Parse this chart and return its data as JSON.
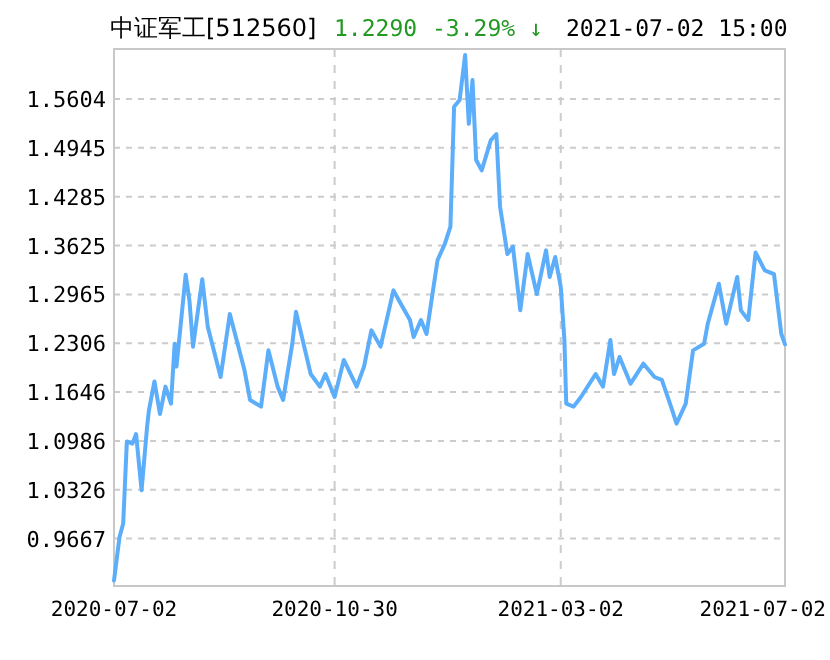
{
  "chart_data": {
    "type": "line",
    "title": "中证军工[512560]",
    "annotations": [
      "1.2290",
      "-3.29% ↓",
      "2021-07-02 15:00"
    ],
    "x": [
      "2020-07-02",
      "2020-07-05",
      "2020-07-07",
      "2020-07-09",
      "2020-07-12",
      "2020-07-14",
      "2020-07-17",
      "2020-07-20",
      "2020-07-21",
      "2020-07-24",
      "2020-07-27",
      "2020-07-30",
      "2020-08-02",
      "2020-08-04",
      "2020-08-05",
      "2020-08-10",
      "2020-08-12",
      "2020-08-14",
      "2020-08-19",
      "2020-08-22",
      "2020-08-29",
      "2020-09-03",
      "2020-09-11",
      "2020-09-14",
      "2020-09-20",
      "2020-09-24",
      "2020-09-29",
      "2020-10-02",
      "2020-10-07",
      "2020-10-09",
      "2020-10-17",
      "2020-10-22",
      "2020-10-25",
      "2020-10-30",
      "2020-11-04",
      "2020-11-11",
      "2020-11-15",
      "2020-11-19",
      "2020-11-24",
      "2020-12-01",
      "2020-12-05",
      "2020-12-10",
      "2020-12-12",
      "2020-12-16",
      "2020-12-19",
      "2020-12-22",
      "2020-12-25",
      "2020-12-29",
      "2021-01-01",
      "2021-01-03",
      "2021-01-06",
      "2021-01-09",
      "2021-01-11",
      "2021-01-13",
      "2021-01-15",
      "2021-01-18",
      "2021-01-23",
      "2021-01-26",
      "2021-01-28",
      "2021-02-01",
      "2021-02-04",
      "2021-02-08",
      "2021-02-12",
      "2021-02-17",
      "2021-02-22",
      "2021-02-24",
      "2021-02-27",
      "2021-03-02",
      "2021-03-04",
      "2021-03-05",
      "2021-03-09",
      "2021-03-13",
      "2021-03-21",
      "2021-03-25",
      "2021-03-29",
      "2021-03-31",
      "2021-04-03",
      "2021-04-09",
      "2021-04-16",
      "2021-04-22",
      "2021-04-26",
      "2021-05-01",
      "2021-05-04",
      "2021-05-09",
      "2021-05-13",
      "2021-05-19",
      "2021-05-21",
      "2021-05-27",
      "2021-05-31",
      "2021-06-06",
      "2021-06-08",
      "2021-06-12",
      "2021-06-16",
      "2021-06-21",
      "2021-06-26",
      "2021-06-30",
      "2021-07-02"
    ],
    "series": [
      {
        "color": "#5caefa",
        "values": [
          0.91,
          0.969,
          0.987,
          1.098,
          1.095,
          1.108,
          1.032,
          1.118,
          1.14,
          1.179,
          1.135,
          1.172,
          1.149,
          1.23,
          1.199,
          1.323,
          1.289,
          1.226,
          1.317,
          1.253,
          1.185,
          1.27,
          1.194,
          1.154,
          1.145,
          1.221,
          1.172,
          1.154,
          1.23,
          1.273,
          1.189,
          1.172,
          1.189,
          1.158,
          1.208,
          1.172,
          1.199,
          1.248,
          1.226,
          1.302,
          1.284,
          1.262,
          1.239,
          1.262,
          1.243,
          1.293,
          1.343,
          1.365,
          1.388,
          1.55,
          1.559,
          1.62,
          1.527,
          1.586,
          1.478,
          1.464,
          1.505,
          1.513,
          1.415,
          1.351,
          1.361,
          1.275,
          1.351,
          1.297,
          1.356,
          1.32,
          1.347,
          1.307,
          1.235,
          1.149,
          1.145,
          1.158,
          1.189,
          1.172,
          1.235,
          1.189,
          1.212,
          1.176,
          1.203,
          1.185,
          1.181,
          1.145,
          1.122,
          1.149,
          1.221,
          1.23,
          1.257,
          1.311,
          1.257,
          1.32,
          1.275,
          1.262,
          1.353,
          1.329,
          1.324,
          1.243,
          1.229
        ]
      }
    ],
    "xlim": [
      "2020-07-02",
      "2021-07-02"
    ],
    "xticks": [
      "2020-07-02",
      "2020-10-30",
      "2021-03-02",
      "2021-07-02"
    ],
    "ylim": [
      0.9027,
      1.628
    ],
    "yticks": [
      0.9667,
      1.0326,
      1.0986,
      1.1646,
      1.2306,
      1.2965,
      1.3625,
      1.4285,
      1.4945,
      1.5604
    ],
    "grid": true,
    "marker": "none",
    "line_style": "solid"
  }
}
